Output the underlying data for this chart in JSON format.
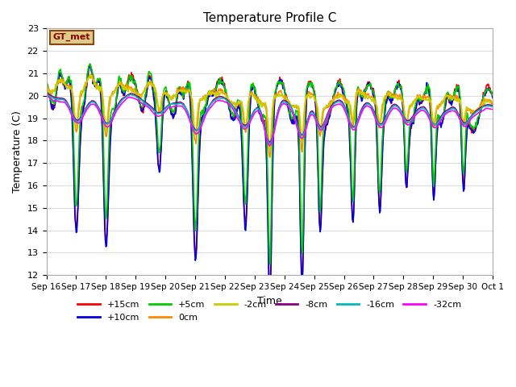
{
  "title": "Temperature Profile C",
  "xlabel": "Time",
  "ylabel": "Temperature (C)",
  "ylim": [
    12.0,
    23.0
  ],
  "yticks": [
    12.0,
    13.0,
    14.0,
    15.0,
    16.0,
    17.0,
    18.0,
    19.0,
    20.0,
    21.0,
    22.0,
    23.0
  ],
  "xtick_labels": [
    "Sep 16",
    "Sep 17",
    "Sep 18",
    "Sep 19",
    "Sep 20",
    "Sep 21",
    "Sep 22",
    "Sep 23",
    "Sep 24",
    "Sep 25",
    "Sep 26",
    "Sep 27",
    "Sep 28",
    "Sep 29",
    "Sep 30",
    "Oct 1"
  ],
  "series": [
    {
      "label": "+15cm",
      "color": "#ff0000",
      "lw": 1.2
    },
    {
      "label": "+10cm",
      "color": "#0000dd",
      "lw": 1.2
    },
    {
      "label": "+5cm",
      "color": "#00cc00",
      "lw": 1.2
    },
    {
      "label": "0cm",
      "color": "#ff8800",
      "lw": 1.2
    },
    {
      "label": "-2cm",
      "color": "#cccc00",
      "lw": 1.2
    },
    {
      "label": "-8cm",
      "color": "#880088",
      "lw": 1.2
    },
    {
      "label": "-16cm",
      "color": "#00bbbb",
      "lw": 1.2
    },
    {
      "label": "-32cm",
      "color": "#ff00ff",
      "lw": 1.2
    }
  ],
  "legend_box_color": "#ddcc88",
  "legend_box_text": "GT_met",
  "plot_bg_color": "#ffffff",
  "grid_color": "#dddddd"
}
